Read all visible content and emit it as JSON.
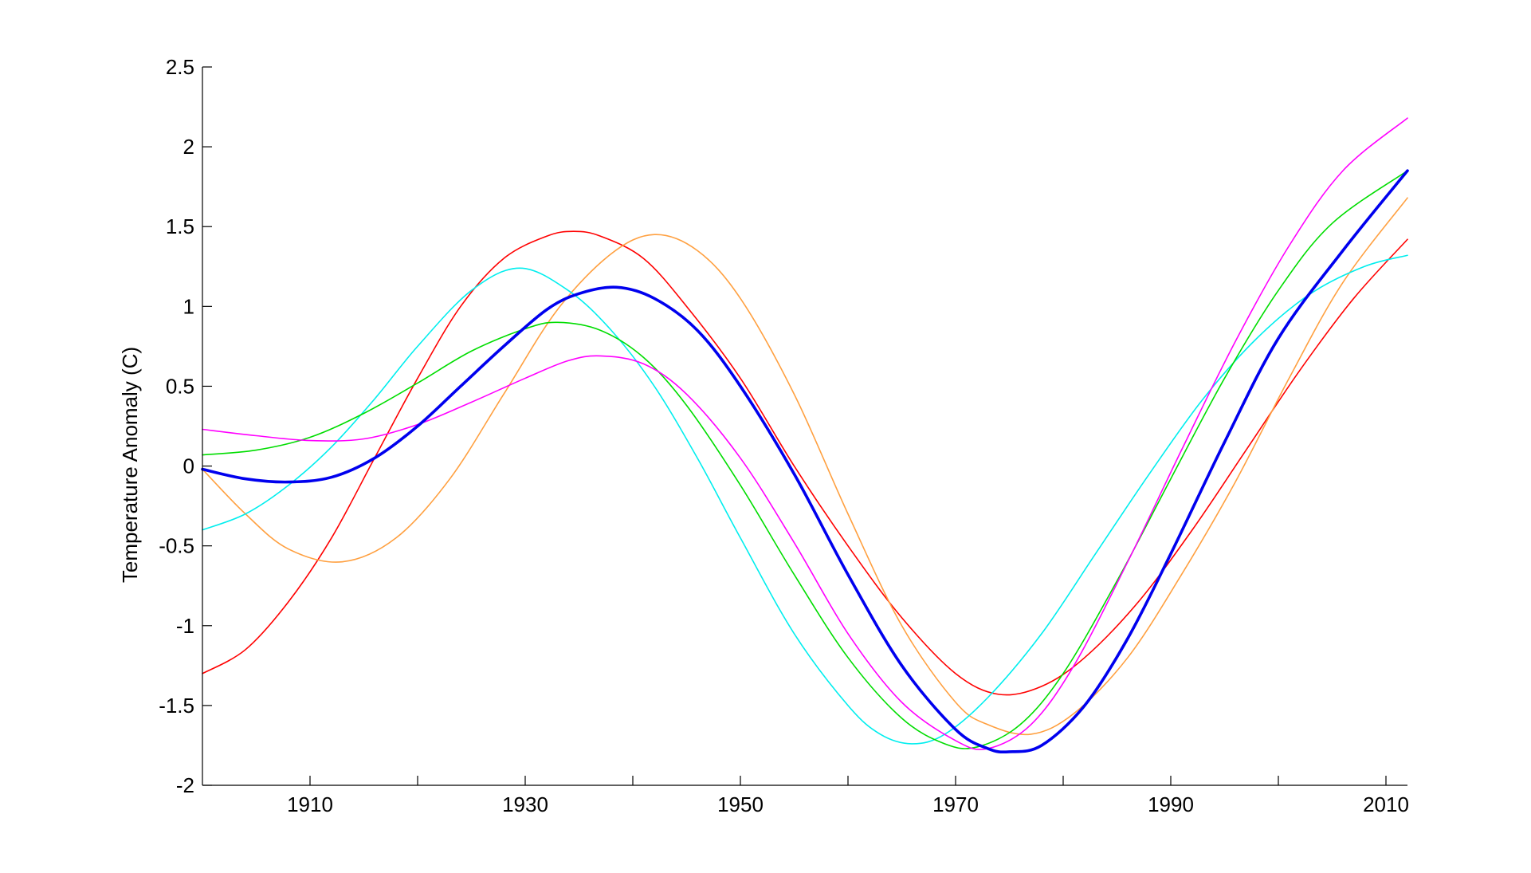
{
  "chart_data": {
    "type": "line",
    "title": "",
    "xlabel": "",
    "ylabel": "Temperature Anomaly (C)",
    "xlim": [
      1900,
      2012
    ],
    "ylim": [
      -2,
      2.5
    ],
    "x_major_ticks": [
      1910,
      1930,
      1950,
      1970,
      1990,
      2010
    ],
    "x_minor_ticks": [
      1920,
      1940,
      1960,
      1980,
      2000
    ],
    "y_ticks": [
      -2,
      -1.5,
      -1,
      -0.5,
      0,
      0.5,
      1,
      1.5,
      2,
      2.5
    ],
    "y_tick_labels": [
      "-2",
      "-1.5",
      "-1",
      "-0.5",
      "0",
      "0.5",
      "1",
      "1.5",
      "2",
      "2.5"
    ],
    "x_tick_labels": [
      "1910",
      "1930",
      "1950",
      "1970",
      "1990",
      "2010"
    ],
    "grid": false,
    "legend": "none",
    "series": [
      {
        "color": "#ff0000",
        "width": 1.6,
        "x": [
          1900,
          1904,
          1908,
          1912,
          1916,
          1920,
          1924,
          1928,
          1932,
          1934.5,
          1937,
          1941,
          1945,
          1950,
          1955,
          1960,
          1965,
          1970,
          1974,
          1978,
          1982,
          1987,
          1992,
          1997,
          2002,
          2007,
          2012
        ],
        "y": [
          -1.3,
          -1.15,
          -0.85,
          -0.45,
          0.05,
          0.55,
          1.0,
          1.3,
          1.44,
          1.47,
          1.44,
          1.3,
          1.0,
          0.55,
          0.0,
          -0.5,
          -0.95,
          -1.3,
          -1.43,
          -1.38,
          -1.2,
          -0.85,
          -0.4,
          0.1,
          0.6,
          1.05,
          1.42
        ]
      },
      {
        "color": "#ffa040",
        "width": 1.6,
        "x": [
          1900,
          1904,
          1908,
          1913,
          1918,
          1923,
          1928,
          1933,
          1938,
          1942,
          1946,
          1950,
          1955,
          1960,
          1965,
          1970,
          1973,
          1977,
          1981,
          1986,
          1991,
          1996,
          2001,
          2006,
          2012
        ],
        "y": [
          -0.02,
          -0.3,
          -0.52,
          -0.6,
          -0.45,
          -0.08,
          0.45,
          0.98,
          1.33,
          1.45,
          1.35,
          1.05,
          0.45,
          -0.3,
          -1.0,
          -1.48,
          -1.62,
          -1.68,
          -1.55,
          -1.2,
          -0.68,
          -0.1,
          0.55,
          1.15,
          1.68
        ]
      },
      {
        "color": "#00eeee",
        "width": 1.6,
        "x": [
          1900,
          1904,
          1908,
          1912,
          1916,
          1920,
          1925,
          1929.5,
          1934,
          1938,
          1942,
          1946,
          1950,
          1955,
          1960,
          1963,
          1966,
          1969,
          1973,
          1978,
          1983,
          1988,
          1993,
          1998,
          2003,
          2008,
          2012
        ],
        "y": [
          -0.4,
          -0.3,
          -0.12,
          0.12,
          0.42,
          0.75,
          1.1,
          1.24,
          1.1,
          0.85,
          0.5,
          0.05,
          -0.45,
          -1.05,
          -1.5,
          -1.68,
          -1.74,
          -1.68,
          -1.45,
          -1.05,
          -0.55,
          -0.05,
          0.42,
          0.8,
          1.08,
          1.25,
          1.32
        ]
      },
      {
        "color": "#00dd00",
        "width": 1.6,
        "x": [
          1900,
          1905,
          1910,
          1915,
          1920,
          1925,
          1930,
          1933,
          1937,
          1941,
          1945,
          1950,
          1955,
          1960,
          1965,
          1969,
          1972,
          1976,
          1980,
          1985,
          1990,
          1995,
          2000,
          2005,
          2012
        ],
        "y": [
          0.07,
          0.1,
          0.18,
          0.33,
          0.52,
          0.72,
          0.86,
          0.9,
          0.85,
          0.68,
          0.38,
          -0.12,
          -0.68,
          -1.2,
          -1.58,
          -1.74,
          -1.76,
          -1.62,
          -1.3,
          -0.72,
          -0.08,
          0.55,
          1.1,
          1.52,
          1.85
        ]
      },
      {
        "color": "#ff00ff",
        "width": 1.6,
        "x": [
          1900,
          1905,
          1910,
          1915,
          1920,
          1925,
          1930,
          1934,
          1937,
          1941,
          1945,
          1950,
          1955,
          1960,
          1965,
          1970,
          1973,
          1977,
          1981,
          1986,
          1991,
          1996,
          2001,
          2006,
          2012
        ],
        "y": [
          0.23,
          0.19,
          0.16,
          0.17,
          0.26,
          0.4,
          0.55,
          0.66,
          0.69,
          0.64,
          0.45,
          0.05,
          -0.48,
          -1.05,
          -1.48,
          -1.72,
          -1.77,
          -1.62,
          -1.25,
          -0.6,
          0.1,
          0.78,
          1.38,
          1.85,
          2.18
        ]
      },
      {
        "color": "#0000ee",
        "width": 3.6,
        "x": [
          1900,
          1904,
          1908,
          1912,
          1916,
          1920,
          1924,
          1928,
          1932,
          1935,
          1938.5,
          1942,
          1946,
          1950,
          1955,
          1960,
          1965,
          1970,
          1973,
          1975,
          1978,
          1982,
          1986,
          1990,
          1995,
          2000,
          2006,
          2012
        ],
        "y": [
          -0.02,
          -0.08,
          -0.1,
          -0.07,
          0.05,
          0.25,
          0.5,
          0.75,
          0.98,
          1.08,
          1.12,
          1.05,
          0.85,
          0.5,
          -0.05,
          -0.68,
          -1.25,
          -1.65,
          -1.77,
          -1.79,
          -1.75,
          -1.5,
          -1.08,
          -0.55,
          0.15,
          0.8,
          1.35,
          1.85
        ]
      }
    ]
  }
}
